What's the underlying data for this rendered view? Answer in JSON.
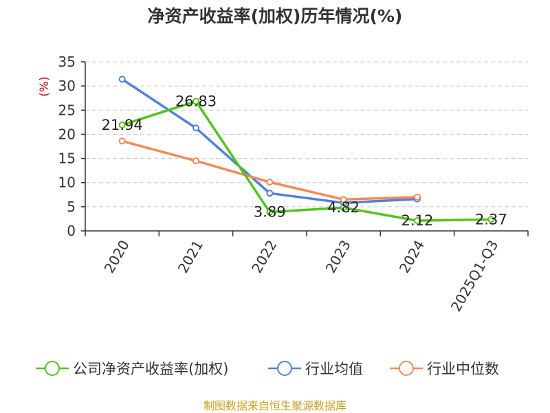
{
  "title": "净资产收益率(加权)历年情况(%)",
  "source": "制图数据来自恒生聚源数据库",
  "chart_data": {
    "type": "line",
    "title": "净资产收益率(加权)历年情况(%)",
    "ylabel": "(%)",
    "xlabel": "",
    "categories": [
      "2020",
      "2021",
      "2022",
      "2023",
      "2024",
      "2025Q1-Q3"
    ],
    "ylim": [
      0,
      35
    ],
    "yticks": [
      0,
      5,
      10,
      15,
      20,
      25,
      30,
      35
    ],
    "grid": "horizontal dashed",
    "legend_position": "bottom",
    "series": [
      {
        "name": "公司净资产收益率(加权)",
        "color": "#52c41a",
        "values": [
          21.94,
          26.83,
          3.89,
          4.82,
          2.12,
          2.37
        ],
        "labels": [
          "21.94",
          "26.83",
          "3.89",
          "4.82",
          "2.12",
          "2.37"
        ]
      },
      {
        "name": "行业均值",
        "color": "#4f81d9",
        "values": [
          31.4,
          21.3,
          7.8,
          5.8,
          6.6,
          null
        ]
      },
      {
        "name": "行业中位数",
        "color": "#f5895a",
        "values": [
          18.6,
          14.5,
          10.1,
          6.5,
          7.0,
          null
        ]
      }
    ]
  }
}
